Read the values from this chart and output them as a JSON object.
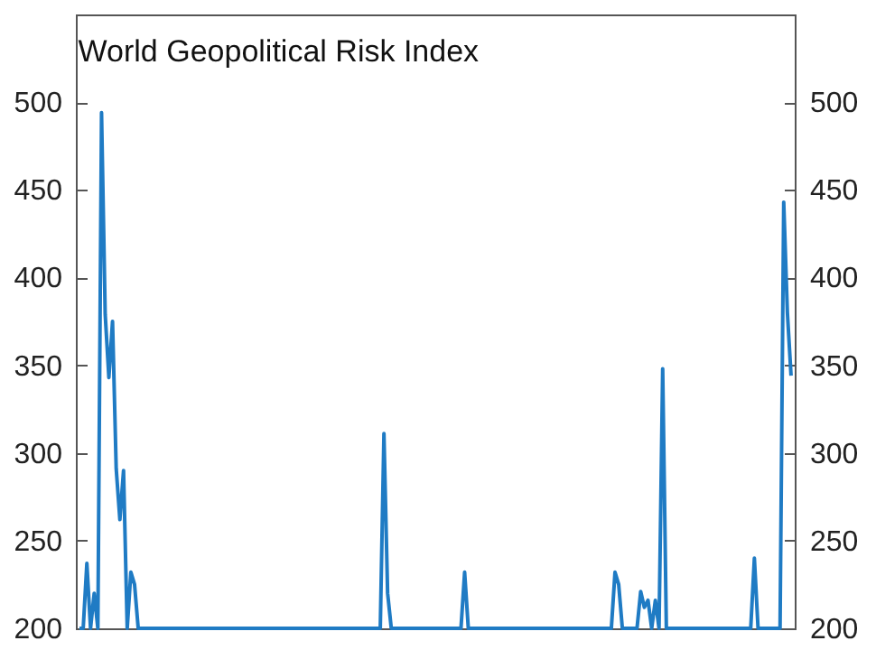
{
  "chart_data": {
    "type": "line",
    "title": "World Geopolitical Risk Index",
    "tick_labels": "y",
    "categories": [
      null,
      null,
      null,
      null,
      null,
      null,
      null,
      null,
      null,
      null,
      null,
      null,
      null,
      null,
      null,
      null,
      null,
      null,
      null,
      null,
      null,
      null,
      null,
      null,
      null,
      null,
      null,
      null,
      null,
      null,
      null,
      null,
      null,
      null,
      null,
      null,
      null,
      null,
      null,
      null,
      null,
      null,
      null,
      null,
      null,
      null,
      null,
      null,
      null,
      null,
      null,
      null,
      null,
      null,
      null,
      null,
      null,
      null,
      null,
      null,
      null,
      null,
      null,
      null,
      null,
      null,
      null,
      null,
      null,
      null,
      null,
      null,
      null,
      null,
      null,
      null,
      null,
      null,
      null,
      null,
      null,
      null,
      null,
      null,
      null,
      null,
      null,
      null,
      null,
      null,
      null,
      null,
      null,
      null,
      null,
      null,
      null,
      null,
      null,
      null,
      null,
      null,
      null,
      null,
      null,
      null,
      null,
      null,
      null,
      null,
      null,
      null,
      null,
      null,
      null,
      null,
      null,
      null,
      null,
      null,
      null,
      null,
      null,
      null,
      null,
      null,
      null,
      null,
      null,
      null,
      null,
      null,
      null,
      null,
      null,
      null,
      null,
      null,
      null,
      null,
      null,
      null,
      null,
      null,
      null,
      null,
      null,
      null,
      null,
      null,
      null,
      null,
      null,
      null,
      null,
      null,
      null,
      null,
      null,
      null,
      null,
      null,
      null,
      null,
      null,
      null,
      null,
      null,
      null,
      null,
      null,
      null,
      null,
      null,
      null,
      null,
      null,
      null,
      null,
      null,
      null,
      null,
      null,
      null,
      null,
      null,
      null,
      null,
      null,
      null,
      null,
      null,
      null,
      null,
      null
    ],
    "values": [
      200,
      200,
      237,
      200,
      220,
      200,
      494,
      379,
      343,
      375,
      291,
      262,
      290,
      200,
      232,
      225,
      200,
      200,
      200,
      200,
      200,
      200,
      200,
      200,
      200,
      200,
      200,
      200,
      200,
      200,
      200,
      200,
      200,
      200,
      200,
      200,
      200,
      200,
      200,
      200,
      200,
      200,
      200,
      200,
      200,
      200,
      200,
      200,
      200,
      200,
      200,
      200,
      200,
      200,
      200,
      200,
      200,
      200,
      200,
      200,
      200,
      200,
      200,
      200,
      200,
      200,
      200,
      200,
      200,
      200,
      200,
      200,
      200,
      200,
      200,
      200,
      200,
      200,
      200,
      200,
      200,
      200,
      200,
      311,
      220,
      200,
      200,
      200,
      200,
      200,
      200,
      200,
      200,
      200,
      200,
      200,
      200,
      200,
      200,
      200,
      200,
      200,
      200,
      200,
      200,
      232,
      200,
      200,
      200,
      200,
      200,
      200,
      200,
      200,
      200,
      200,
      200,
      200,
      200,
      200,
      200,
      200,
      200,
      200,
      200,
      200,
      200,
      200,
      200,
      200,
      200,
      200,
      200,
      200,
      200,
      200,
      200,
      200,
      200,
      200,
      200,
      200,
      200,
      200,
      200,
      200,
      232,
      225,
      200,
      200,
      200,
      200,
      200,
      221,
      212,
      216,
      200,
      216,
      200,
      348,
      200,
      200,
      200,
      200,
      200,
      200,
      200,
      200,
      200,
      200,
      200,
      200,
      200,
      200,
      200,
      200,
      200,
      200,
      200,
      200,
      200,
      200,
      200,
      200,
      240,
      200,
      200,
      200,
      200,
      200,
      200,
      200,
      443,
      380,
      344
    ],
    "color": "#1f7bc4",
    "ylim": [
      200,
      550
    ],
    "yticks": [
      200,
      250,
      300,
      350,
      400,
      450,
      500
    ],
    "y2lim": [
      200,
      550
    ],
    "y2ticks": [
      200,
      250,
      300,
      350,
      400,
      450,
      500
    ]
  }
}
